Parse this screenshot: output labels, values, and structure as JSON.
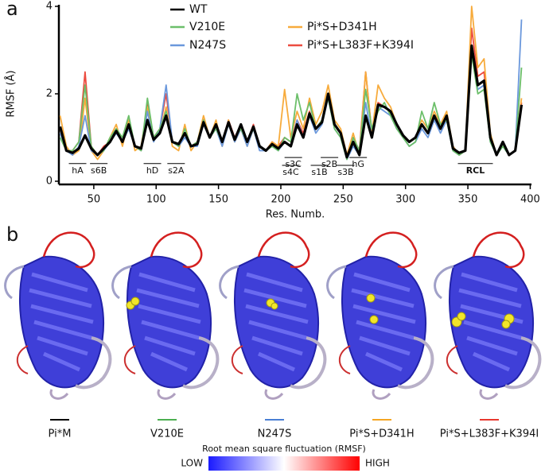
{
  "figure": {
    "panel_labels": [
      "a",
      "b"
    ],
    "structures": [
      {
        "label": "Pi*M",
        "color": "#000000"
      },
      {
        "label": "V210E",
        "color": "#4caf50"
      },
      {
        "label": "N247S",
        "color": "#4a7fd4"
      },
      {
        "label": "Pi*S+D341H",
        "color": "#f5a623"
      },
      {
        "label": "Pi*S+L383F+K394I",
        "color": "#e8382e"
      }
    ],
    "colorbar": {
      "title": "Root mean square fluctuation (RMSF)",
      "low": "LOW",
      "high": "HIGH"
    }
  },
  "chart_data": {
    "type": "line",
    "xlabel": "Res. Numb.",
    "ylabel": "RMSF (Å)",
    "xlim": [
      22,
      401
    ],
    "ylim": [
      0,
      4
    ],
    "xticks": [
      50,
      100,
      150,
      200,
      250,
      300,
      350,
      400
    ],
    "yticks": [
      0,
      2,
      4
    ],
    "legend": "top",
    "x": [
      23,
      28,
      33,
      38,
      43,
      48,
      53,
      58,
      63,
      68,
      73,
      78,
      83,
      88,
      93,
      98,
      103,
      108,
      113,
      118,
      123,
      128,
      133,
      138,
      143,
      148,
      153,
      158,
      163,
      168,
      173,
      178,
      183,
      188,
      193,
      198,
      203,
      208,
      213,
      218,
      223,
      228,
      233,
      238,
      243,
      248,
      253,
      258,
      263,
      268,
      273,
      278,
      283,
      288,
      293,
      298,
      303,
      308,
      313,
      318,
      323,
      328,
      333,
      338,
      343,
      348,
      353,
      358,
      363,
      368,
      373,
      378,
      383,
      388,
      393
    ],
    "series": [
      {
        "name": "WT",
        "color": "#000000",
        "values": [
          1.25,
          0.7,
          0.65,
          0.75,
          1.05,
          0.75,
          0.6,
          0.75,
          0.9,
          1.15,
          0.9,
          1.3,
          0.8,
          0.75,
          1.4,
          0.95,
          1.1,
          1.5,
          0.9,
          0.85,
          1.1,
          0.8,
          0.85,
          1.35,
          1.0,
          1.3,
          0.9,
          1.35,
          0.95,
          1.3,
          0.9,
          1.25,
          0.8,
          0.7,
          0.85,
          0.75,
          0.9,
          0.8,
          1.3,
          1.0,
          1.55,
          1.2,
          1.35,
          2.0,
          1.3,
          1.1,
          0.55,
          0.9,
          0.6,
          1.5,
          1.0,
          1.75,
          1.7,
          1.6,
          1.3,
          1.05,
          0.9,
          1.0,
          1.3,
          1.1,
          1.5,
          1.2,
          1.5,
          0.75,
          0.65,
          0.7,
          3.1,
          2.2,
          2.3,
          1.0,
          0.6,
          0.9,
          0.6,
          0.7,
          1.75
        ]
      },
      {
        "name": "V210E",
        "color": "#6cbf6a",
        "values": [
          1.0,
          0.7,
          0.7,
          0.9,
          2.2,
          0.8,
          0.6,
          0.7,
          1.0,
          1.2,
          1.0,
          1.5,
          0.8,
          0.7,
          1.9,
          1.0,
          1.2,
          1.6,
          0.9,
          0.8,
          1.2,
          0.8,
          0.9,
          1.4,
          1.0,
          1.2,
          0.9,
          1.3,
          1.0,
          1.2,
          0.9,
          1.2,
          0.8,
          0.7,
          0.8,
          0.7,
          1.0,
          0.9,
          2.0,
          1.4,
          1.8,
          1.2,
          1.4,
          1.9,
          1.2,
          1.0,
          0.5,
          1.0,
          0.7,
          2.1,
          1.2,
          1.6,
          1.8,
          1.5,
          1.2,
          1.0,
          0.8,
          0.9,
          1.6,
          1.2,
          1.8,
          1.3,
          1.4,
          0.7,
          0.6,
          0.7,
          2.9,
          2.0,
          2.1,
          0.9,
          0.6,
          0.8,
          0.6,
          0.7,
          2.6
        ]
      },
      {
        "name": "N247S",
        "color": "#6b98dc",
        "values": [
          1.1,
          0.7,
          0.6,
          0.8,
          1.5,
          0.7,
          0.6,
          0.7,
          0.9,
          1.1,
          0.9,
          1.2,
          0.8,
          0.7,
          1.6,
          0.9,
          1.2,
          2.2,
          0.9,
          0.8,
          1.0,
          0.8,
          0.8,
          1.3,
          1.0,
          1.2,
          0.8,
          1.3,
          0.9,
          1.2,
          0.8,
          1.2,
          0.7,
          0.7,
          0.8,
          0.7,
          0.9,
          0.8,
          1.4,
          1.0,
          1.5,
          1.1,
          1.3,
          1.9,
          1.2,
          1.0,
          0.5,
          0.8,
          0.6,
          1.8,
          1.0,
          1.7,
          1.6,
          1.5,
          1.2,
          1.0,
          0.8,
          0.9,
          1.2,
          1.0,
          1.4,
          1.1,
          1.4,
          0.7,
          0.6,
          0.7,
          3.0,
          2.1,
          2.2,
          0.9,
          0.6,
          0.8,
          0.6,
          0.7,
          3.7
        ]
      },
      {
        "name": "Pi*S+D341H",
        "color": "#f7ab3c",
        "values": [
          1.5,
          0.8,
          0.6,
          0.7,
          1.9,
          0.7,
          0.5,
          0.7,
          1.0,
          1.3,
          0.8,
          1.4,
          0.7,
          0.8,
          1.7,
          1.0,
          1.1,
          1.7,
          0.8,
          0.7,
          1.3,
          0.7,
          0.9,
          1.5,
          1.0,
          1.4,
          0.8,
          1.4,
          0.9,
          1.2,
          0.8,
          1.2,
          0.8,
          0.7,
          0.9,
          0.8,
          2.1,
          1.0,
          1.6,
          1.2,
          1.9,
          1.3,
          1.6,
          2.2,
          1.4,
          1.2,
          0.6,
          1.1,
          0.6,
          2.5,
          1.1,
          2.2,
          1.9,
          1.7,
          1.3,
          1.0,
          0.9,
          1.0,
          1.4,
          1.2,
          1.6,
          1.3,
          1.6,
          0.8,
          0.6,
          0.7,
          4.0,
          2.6,
          2.8,
          1.1,
          0.6,
          0.9,
          0.6,
          0.7,
          1.9
        ]
      },
      {
        "name": "Pi*S+L383F+K394I",
        "color": "#ec4c40",
        "values": [
          1.2,
          0.7,
          0.7,
          0.9,
          2.5,
          0.8,
          0.6,
          0.8,
          0.9,
          1.2,
          0.9,
          1.4,
          0.8,
          0.7,
          1.8,
          1.0,
          1.2,
          2.0,
          0.9,
          0.8,
          1.1,
          0.8,
          0.9,
          1.4,
          1.0,
          1.3,
          0.9,
          1.4,
          1.0,
          1.3,
          0.9,
          1.3,
          0.8,
          0.7,
          0.9,
          0.8,
          1.0,
          0.9,
          1.4,
          1.1,
          1.6,
          1.2,
          1.4,
          1.9,
          1.3,
          1.1,
          0.6,
          1.0,
          0.7,
          2.5,
          1.1,
          1.8,
          1.7,
          1.6,
          1.3,
          1.0,
          0.9,
          1.0,
          1.3,
          1.1,
          1.5,
          1.2,
          1.5,
          0.8,
          0.6,
          0.7,
          3.5,
          2.4,
          2.5,
          1.0,
          0.6,
          0.9,
          0.6,
          0.7,
          1.8
        ]
      }
    ],
    "annotations": [
      {
        "text": "hA",
        "x": 37,
        "y": 0.24
      },
      {
        "text": "s6B",
        "x": 54,
        "y": 0.24
      },
      {
        "text": "hD",
        "x": 97,
        "y": 0.24
      },
      {
        "text": "s2A",
        "x": 116,
        "y": 0.24
      },
      {
        "text": "s3C",
        "x": 210,
        "y": 0.38
      },
      {
        "text": "s2B",
        "x": 239,
        "y": 0.38
      },
      {
        "text": "hG",
        "x": 262,
        "y": 0.38
      },
      {
        "text": "s4C",
        "x": 208,
        "y": 0.2
      },
      {
        "text": "s1B",
        "x": 231,
        "y": 0.2
      },
      {
        "text": "s3B",
        "x": 252,
        "y": 0.2
      },
      {
        "text": "RCL",
        "x": 356,
        "y": 0.24,
        "bold": true
      }
    ]
  }
}
